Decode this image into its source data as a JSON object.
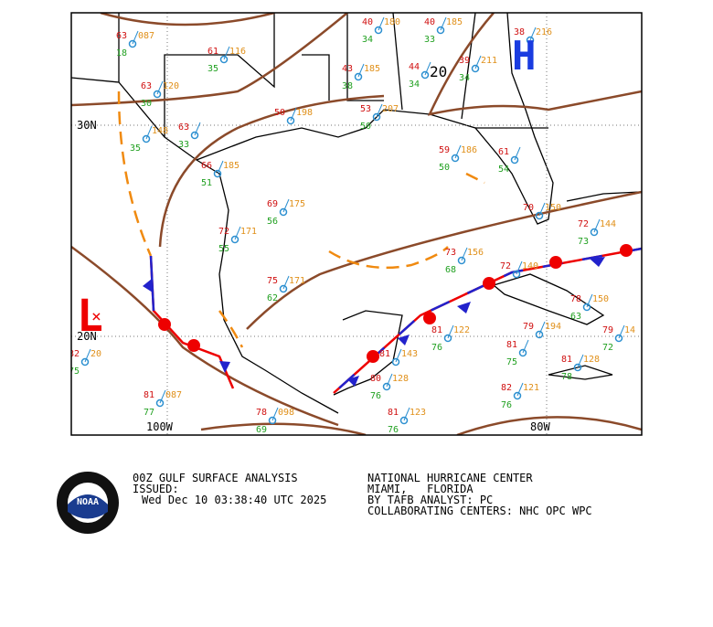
{
  "map": {
    "grid_labels": [
      "30N",
      "20N",
      "100W",
      "80W"
    ],
    "highs": [
      {
        "label": "H"
      }
    ],
    "lows": [
      {
        "label": "L"
      }
    ],
    "isobar_labels": [
      "20"
    ],
    "stations": [
      {
        "temp": "63",
        "pres": "087",
        "dew": "18"
      },
      {
        "temp": "61",
        "pres": "116",
        "dew": "35"
      },
      {
        "temp": "63",
        "pres": "120",
        "dew": "30"
      },
      {
        "temp": "63",
        "dew": "33"
      },
      {
        "pres": "148",
        "dew": "35"
      },
      {
        "temp": "50",
        "pres": "198"
      },
      {
        "temp": "66",
        "pres": "185",
        "dew": "51"
      },
      {
        "temp": "69",
        "pres": "175",
        "dew": "56"
      },
      {
        "temp": "72",
        "pres": "171",
        "dew": "55"
      },
      {
        "temp": "75",
        "pres": "171",
        "dew": "62"
      },
      {
        "temp": "40",
        "pres": "180",
        "dew": "34"
      },
      {
        "temp": "40",
        "pres": "185",
        "dew": "33"
      },
      {
        "temp": "43",
        "pres": "185",
        "dew": "38"
      },
      {
        "temp": "44",
        "dew": "34"
      },
      {
        "temp": "39",
        "pres": "211",
        "dew": "34"
      },
      {
        "temp": "38",
        "pres": "216"
      },
      {
        "temp": "53",
        "pres": "207",
        "dew": "50"
      },
      {
        "temp": "59",
        "pres": "186",
        "dew": "50"
      },
      {
        "temp": "61",
        "dew": "54"
      },
      {
        "temp": "70",
        "pres": "150"
      },
      {
        "temp": "73",
        "pres": "156",
        "dew": "68"
      },
      {
        "temp": "72",
        "pres": "140"
      },
      {
        "temp": "72",
        "pres": "144",
        "dew": "73"
      },
      {
        "temp": "81",
        "pres": "122",
        "dew": "76"
      },
      {
        "temp": "79",
        "pres": "194"
      },
      {
        "temp": "81",
        "dew": "75"
      },
      {
        "temp": "81",
        "pres": "128",
        "dew": "78"
      },
      {
        "temp": "82",
        "pres": "121",
        "dew": "76"
      },
      {
        "temp": "79",
        "pres": "14",
        "dew": "72"
      },
      {
        "temp": "81",
        "pres": "143"
      },
      {
        "temp": "80",
        "pres": "128",
        "dew": "76"
      },
      {
        "temp": "81",
        "pres": "087",
        "dew": "77"
      },
      {
        "temp": "82",
        "pres": "20",
        "dew": "75"
      },
      {
        "temp": "78",
        "pres": "150",
        "dew": "63"
      },
      {
        "temp": "78",
        "pres": "098",
        "dew": "69"
      },
      {
        "temp": "81",
        "pres": "123",
        "dew": "76"
      }
    ]
  },
  "footer": {
    "logo": "NOAA",
    "title": "00Z GULF SURFACE ANALYSIS",
    "issued": "ISSUED:",
    "date": "Wed Dec 10 03:38:40 UTC 2025",
    "center": "NATIONAL HURRICANE CENTER",
    "location": "MIAMI,   FLORIDA",
    "analyst": "BY TAFB ANALYST: PC",
    "collab": "COLLABORATING CENTERS: NHC OPC WPC"
  }
}
